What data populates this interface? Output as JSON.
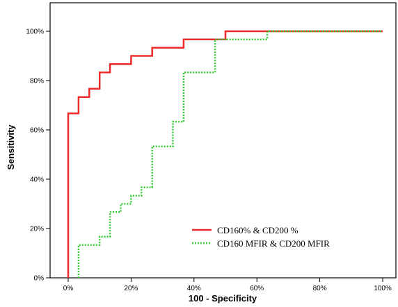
{
  "chart_data": {
    "type": "line",
    "xlabel": "100 - Specificity",
    "ylabel": "Sensitivity",
    "xlim": [
      0,
      100
    ],
    "ylim": [
      0,
      100
    ],
    "x_ticks": [
      0,
      20,
      40,
      60,
      80,
      100
    ],
    "y_ticks": [
      0,
      20,
      40,
      60,
      80,
      100
    ],
    "x_tick_labels": [
      "0%",
      "20%",
      "40%",
      "60%",
      "80%",
      "100%"
    ],
    "y_tick_labels": [
      "0%",
      "20%",
      "40%",
      "60%",
      "80%",
      "100%"
    ],
    "grid": false,
    "legend_position": "bottom-right",
    "series": [
      {
        "name": "CD160% & CD200 %",
        "color": "#ee2b2b",
        "style": "solid",
        "points": [
          [
            0,
            0
          ],
          [
            0,
            66.7
          ],
          [
            3.3,
            66.7
          ],
          [
            3.3,
            73.3
          ],
          [
            6.7,
            73.3
          ],
          [
            6.7,
            76.7
          ],
          [
            10,
            76.7
          ],
          [
            10,
            83.3
          ],
          [
            13.3,
            83.3
          ],
          [
            13.3,
            86.7
          ],
          [
            20,
            86.7
          ],
          [
            20,
            90
          ],
          [
            26.7,
            90
          ],
          [
            26.7,
            93.3
          ],
          [
            36.7,
            93.3
          ],
          [
            36.7,
            96.7
          ],
          [
            50,
            96.7
          ],
          [
            50,
            100
          ],
          [
            100,
            100
          ]
        ]
      },
      {
        "name": "CD160 MFIR & CD200 MFIR",
        "color": "#33cc33",
        "style": "dotted",
        "points": [
          [
            3.3,
            0
          ],
          [
            3.3,
            13.3
          ],
          [
            10,
            13.3
          ],
          [
            10,
            16.7
          ],
          [
            13.3,
            16.7
          ],
          [
            13.3,
            26.7
          ],
          [
            16.7,
            26.7
          ],
          [
            16.7,
            30
          ],
          [
            20,
            30
          ],
          [
            20,
            33.3
          ],
          [
            23.3,
            33.3
          ],
          [
            23.3,
            36.7
          ],
          [
            26.7,
            36.7
          ],
          [
            26.7,
            53.3
          ],
          [
            33.3,
            53.3
          ],
          [
            33.3,
            63.3
          ],
          [
            36.7,
            63.3
          ],
          [
            36.7,
            83.3
          ],
          [
            46.7,
            83.3
          ],
          [
            46.7,
            96.7
          ],
          [
            63.3,
            96.7
          ],
          [
            63.3,
            100
          ],
          [
            100,
            100
          ]
        ]
      }
    ]
  }
}
